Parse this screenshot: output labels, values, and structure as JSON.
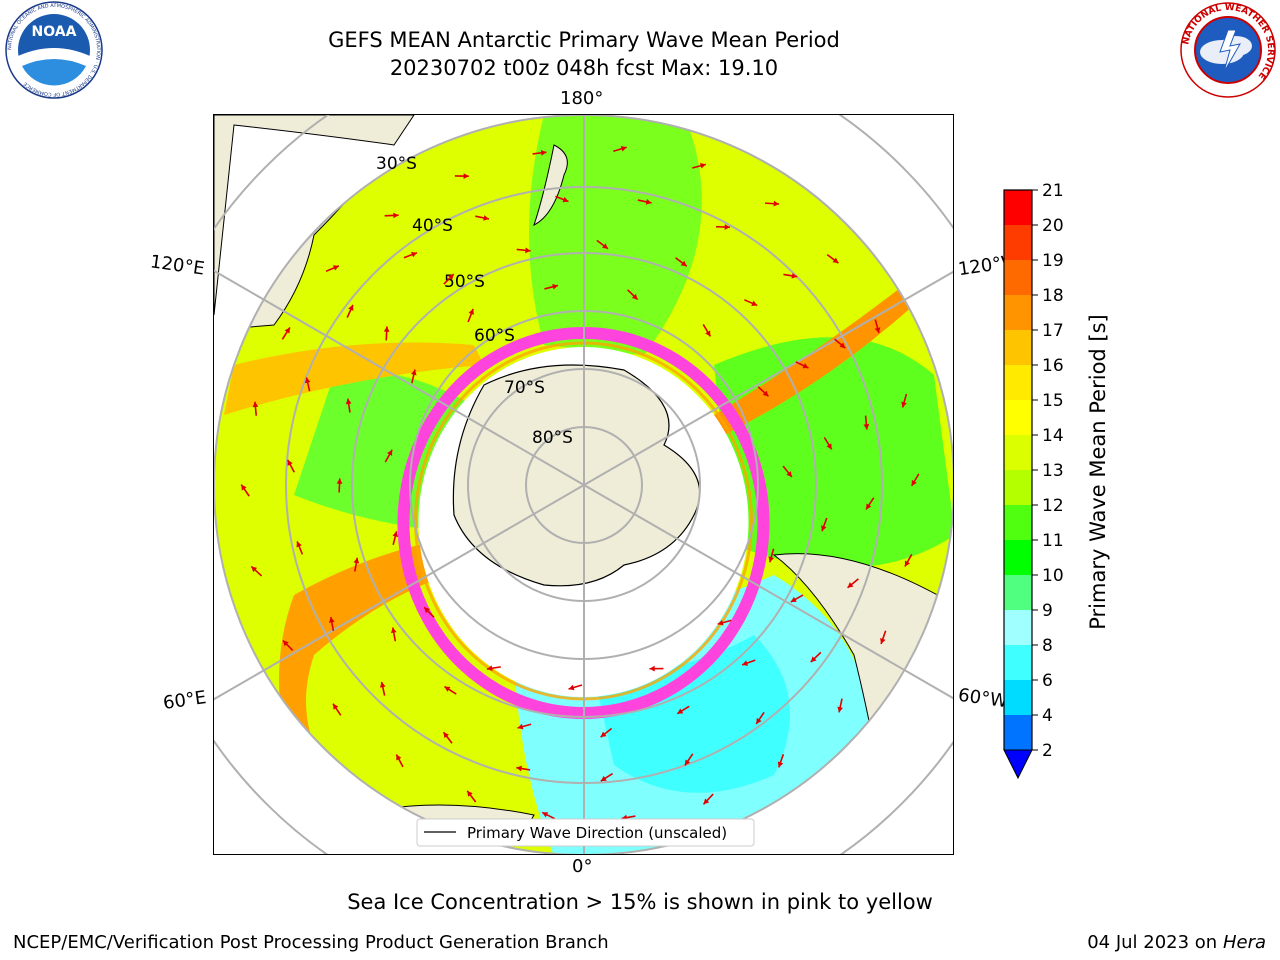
{
  "title": {
    "line1": "GEFS MEAN Antarctic Primary Wave Mean Period",
    "line2": "20230702 t00z 048h fcst   Max: 19.10"
  },
  "logos": {
    "left": "NOAA",
    "left_ring": "NATIONAL OCEANIC AND ATMOSPHERIC ADMINISTRATION · U.S. DEPARTMENT OF COMMERCE",
    "right_ring": "NATIONAL WEATHER SERVICE"
  },
  "map": {
    "projection": "south-polar-stereographic",
    "longitude_labels": {
      "top": "180°",
      "bottom": "0°",
      "upper_left": "120°E",
      "upper_right": "120°W",
      "lower_left": "60°E",
      "lower_right": "60°W"
    },
    "latitude_labels": [
      "30°S",
      "40°S",
      "50°S",
      "60°S",
      "70°S",
      "80°S"
    ],
    "legend": "Primary Wave Direction (unscaled)",
    "colors": {
      "land": "#efedd8",
      "ice_edge": "#ff44dd",
      "ice_inner": "#ffa500",
      "grid": "#b0b0b0",
      "arrow": "#e00000"
    }
  },
  "colorbar": {
    "label": "Primary Wave Mean Period [s]",
    "ticks": [
      "2",
      "4",
      "6",
      "8",
      "9",
      "10",
      "11",
      "12",
      "13",
      "14",
      "15",
      "16",
      "17",
      "18",
      "19",
      "20",
      "21"
    ],
    "colors": [
      "#0073ff",
      "#00dcff",
      "#40ffff",
      "#a0ffff",
      "#50ff80",
      "#00ff00",
      "#50ff10",
      "#b4ff00",
      "#dcff00",
      "#ffff00",
      "#ffea00",
      "#ffc400",
      "#ff9400",
      "#ff6a00",
      "#ff3c00",
      "#ff0000"
    ],
    "under_color": "#0000ff"
  },
  "subtitle": "Sea Ice Concentration > 15% is shown in pink to yellow",
  "footer": {
    "left": "NCEP/EMC/Verification Post Processing Product Generation Branch",
    "right_date": "04 Jul 2023 on ",
    "right_machine": "Hera"
  }
}
